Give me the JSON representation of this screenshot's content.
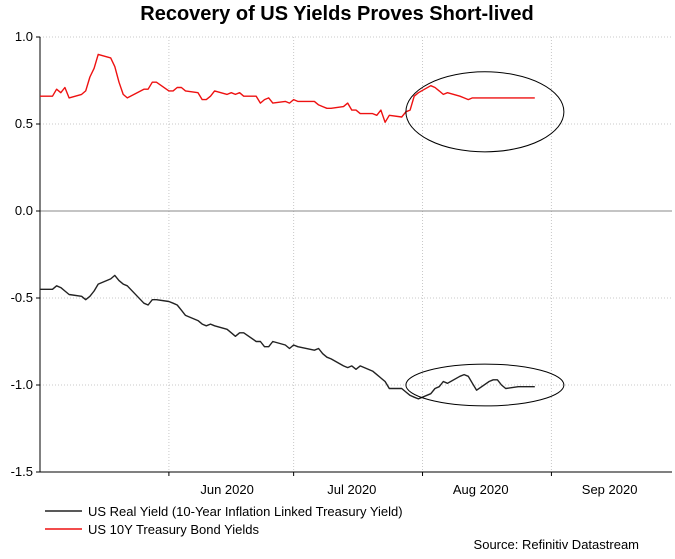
{
  "chart_data": {
    "type": "line",
    "title": "Recovery of US Yields Proves Short-lived",
    "xlabel": "",
    "ylabel": "",
    "ylim": [
      -1.5,
      1.0
    ],
    "y_ticks": [
      "1.0",
      "0.5",
      "0.0",
      "-0.5",
      "-1.0",
      "-1.5"
    ],
    "y_tick_values": [
      1.0,
      0.5,
      0.0,
      -0.5,
      -1.0,
      -1.5
    ],
    "x_range": [
      "2020-05-01",
      "2020-09-30"
    ],
    "x_ticks": [
      {
        "label": "Jun 2020",
        "date": "2020-06-15"
      },
      {
        "label": "Jul 2020",
        "date": "2020-07-15"
      },
      {
        "label": "Aug 2020",
        "date": "2020-08-15"
      },
      {
        "label": "Sep 2020",
        "date": "2020-09-15"
      }
    ],
    "x_gridlines": [
      "2020-06-01",
      "2020-07-01",
      "2020-08-01",
      "2020-09-01"
    ],
    "grid": true,
    "legend_position": "bottom-left",
    "series": [
      {
        "name": "US Real Yield (10-Year Inflation Linked Treasury Yield)",
        "color": "#222222",
        "x": [
          "2020-05-01",
          "2020-05-04",
          "2020-05-05",
          "2020-05-06",
          "2020-05-07",
          "2020-05-08",
          "2020-05-11",
          "2020-05-12",
          "2020-05-13",
          "2020-05-14",
          "2020-05-15",
          "2020-05-18",
          "2020-05-19",
          "2020-05-20",
          "2020-05-21",
          "2020-05-22",
          "2020-05-26",
          "2020-05-27",
          "2020-05-28",
          "2020-05-29",
          "2020-06-01",
          "2020-06-02",
          "2020-06-03",
          "2020-06-04",
          "2020-06-05",
          "2020-06-08",
          "2020-06-09",
          "2020-06-10",
          "2020-06-11",
          "2020-06-12",
          "2020-06-15",
          "2020-06-16",
          "2020-06-17",
          "2020-06-18",
          "2020-06-19",
          "2020-06-22",
          "2020-06-23",
          "2020-06-24",
          "2020-06-25",
          "2020-06-26",
          "2020-06-29",
          "2020-06-30",
          "2020-07-01",
          "2020-07-02",
          "2020-07-06",
          "2020-07-07",
          "2020-07-08",
          "2020-07-09",
          "2020-07-10",
          "2020-07-13",
          "2020-07-14",
          "2020-07-15",
          "2020-07-16",
          "2020-07-17",
          "2020-07-20",
          "2020-07-21",
          "2020-07-22",
          "2020-07-23",
          "2020-07-24",
          "2020-07-27",
          "2020-07-28",
          "2020-07-29",
          "2020-07-30",
          "2020-07-31",
          "2020-08-03",
          "2020-08-04",
          "2020-08-05",
          "2020-08-06",
          "2020-08-07",
          "2020-08-10",
          "2020-08-11",
          "2020-08-12",
          "2020-08-13",
          "2020-08-14",
          "2020-08-17",
          "2020-08-18",
          "2020-08-19",
          "2020-08-20",
          "2020-08-21",
          "2020-08-24",
          "2020-08-25",
          "2020-08-26",
          "2020-08-27",
          "2020-08-28"
        ],
        "values": [
          -0.45,
          -0.45,
          -0.43,
          -0.44,
          -0.46,
          -0.48,
          -0.49,
          -0.51,
          -0.49,
          -0.46,
          -0.42,
          -0.39,
          -0.37,
          -0.4,
          -0.42,
          -0.43,
          -0.53,
          -0.54,
          -0.51,
          -0.51,
          -0.52,
          -0.53,
          -0.54,
          -0.57,
          -0.6,
          -0.63,
          -0.65,
          -0.66,
          -0.65,
          -0.66,
          -0.68,
          -0.7,
          -0.72,
          -0.7,
          -0.7,
          -0.75,
          -0.75,
          -0.78,
          -0.78,
          -0.75,
          -0.77,
          -0.79,
          -0.77,
          -0.78,
          -0.8,
          -0.79,
          -0.82,
          -0.84,
          -0.85,
          -0.89,
          -0.9,
          -0.89,
          -0.91,
          -0.89,
          -0.92,
          -0.94,
          -0.96,
          -0.98,
          -1.02,
          -1.02,
          -1.04,
          -1.06,
          -1.07,
          -1.08,
          -1.05,
          -1.02,
          -1.01,
          -0.98,
          -0.99,
          -0.95,
          -0.94,
          -0.95,
          -0.99,
          -1.03,
          -0.98,
          -0.97,
          -0.97,
          -1.0,
          -1.02,
          -1.01,
          -1.01,
          -1.01,
          -1.01,
          -1.01
        ]
      },
      {
        "name": "US 10Y Treasury Bond Yields",
        "color": "#ee1111",
        "x": [
          "2020-05-01",
          "2020-05-04",
          "2020-05-05",
          "2020-05-06",
          "2020-05-07",
          "2020-05-08",
          "2020-05-11",
          "2020-05-12",
          "2020-05-13",
          "2020-05-14",
          "2020-05-15",
          "2020-05-18",
          "2020-05-19",
          "2020-05-20",
          "2020-05-21",
          "2020-05-22",
          "2020-05-26",
          "2020-05-27",
          "2020-05-28",
          "2020-05-29",
          "2020-06-01",
          "2020-06-02",
          "2020-06-03",
          "2020-06-04",
          "2020-06-05",
          "2020-06-08",
          "2020-06-09",
          "2020-06-10",
          "2020-06-11",
          "2020-06-12",
          "2020-06-15",
          "2020-06-16",
          "2020-06-17",
          "2020-06-18",
          "2020-06-19",
          "2020-06-22",
          "2020-06-23",
          "2020-06-24",
          "2020-06-25",
          "2020-06-26",
          "2020-06-29",
          "2020-06-30",
          "2020-07-01",
          "2020-07-02",
          "2020-07-06",
          "2020-07-07",
          "2020-07-08",
          "2020-07-09",
          "2020-07-10",
          "2020-07-13",
          "2020-07-14",
          "2020-07-15",
          "2020-07-16",
          "2020-07-17",
          "2020-07-20",
          "2020-07-21",
          "2020-07-22",
          "2020-07-23",
          "2020-07-24",
          "2020-07-27",
          "2020-07-28",
          "2020-07-29",
          "2020-07-30",
          "2020-07-31",
          "2020-08-03",
          "2020-08-04",
          "2020-08-05",
          "2020-08-06",
          "2020-08-07",
          "2020-08-10",
          "2020-08-11",
          "2020-08-12",
          "2020-08-13",
          "2020-08-14",
          "2020-08-17",
          "2020-08-18",
          "2020-08-19",
          "2020-08-20",
          "2020-08-21",
          "2020-08-24",
          "2020-08-25",
          "2020-08-26",
          "2020-08-27",
          "2020-08-28"
        ],
        "values": [
          0.66,
          0.66,
          0.7,
          0.68,
          0.71,
          0.65,
          0.67,
          0.69,
          0.77,
          0.82,
          0.9,
          0.88,
          0.83,
          0.74,
          0.67,
          0.65,
          0.7,
          0.7,
          0.74,
          0.74,
          0.69,
          0.69,
          0.71,
          0.71,
          0.69,
          0.68,
          0.64,
          0.64,
          0.66,
          0.69,
          0.67,
          0.68,
          0.67,
          0.68,
          0.66,
          0.66,
          0.62,
          0.64,
          0.65,
          0.62,
          0.63,
          0.62,
          0.64,
          0.63,
          0.63,
          0.61,
          0.6,
          0.59,
          0.59,
          0.6,
          0.62,
          0.58,
          0.58,
          0.56,
          0.56,
          0.55,
          0.58,
          0.51,
          0.55,
          0.54,
          0.57,
          0.58,
          0.66,
          0.68,
          0.72,
          0.71,
          0.69,
          0.67,
          0.68,
          0.66,
          0.65,
          0.64,
          0.65,
          0.65,
          0.65,
          0.65,
          0.65,
          0.65,
          0.65,
          0.65,
          0.65,
          0.65,
          0.65,
          0.65
        ]
      }
    ],
    "annotations": [
      {
        "type": "ellipse",
        "center_date": "2020-08-16",
        "center_value": 0.57,
        "date_half_width": 19,
        "value_half_height": 0.23
      },
      {
        "type": "ellipse",
        "center_date": "2020-08-16",
        "center_value": -1.0,
        "date_half_width": 19,
        "value_half_height": 0.12
      }
    ]
  },
  "source": "Source: Refinitiv Datastream"
}
